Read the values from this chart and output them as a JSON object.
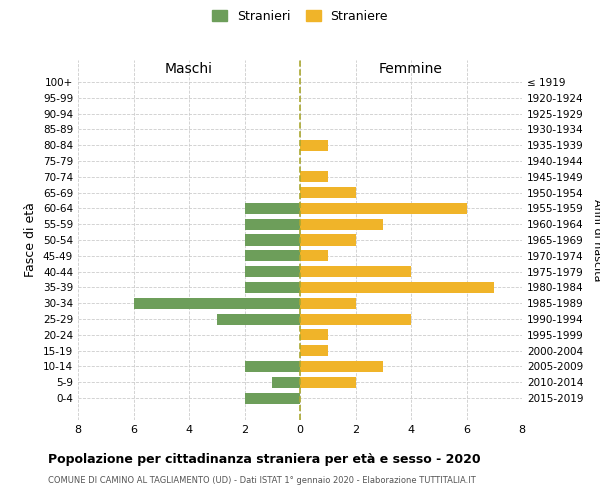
{
  "age_groups": [
    "100+",
    "95-99",
    "90-94",
    "85-89",
    "80-84",
    "75-79",
    "70-74",
    "65-69",
    "60-64",
    "55-59",
    "50-54",
    "45-49",
    "40-44",
    "35-39",
    "30-34",
    "25-29",
    "20-24",
    "15-19",
    "10-14",
    "5-9",
    "0-4"
  ],
  "birth_years": [
    "≤ 1919",
    "1920-1924",
    "1925-1929",
    "1930-1934",
    "1935-1939",
    "1940-1944",
    "1945-1949",
    "1950-1954",
    "1955-1959",
    "1960-1964",
    "1965-1969",
    "1970-1974",
    "1975-1979",
    "1980-1984",
    "1985-1989",
    "1990-1994",
    "1995-1999",
    "2000-2004",
    "2005-2009",
    "2010-2014",
    "2015-2019"
  ],
  "maschi": [
    0,
    0,
    0,
    0,
    0,
    0,
    0,
    0,
    2,
    2,
    2,
    2,
    2,
    2,
    6,
    3,
    0,
    0,
    2,
    1,
    2
  ],
  "femmine": [
    0,
    0,
    0,
    0,
    1,
    0,
    1,
    2,
    6,
    3,
    2,
    1,
    4,
    7,
    2,
    4,
    1,
    1,
    3,
    2,
    0
  ],
  "color_maschi": "#6d9e5a",
  "color_femmine": "#f0b429",
  "xlim": 8,
  "title_main": "Popolazione per cittadinanza straniera per età e sesso - 2020",
  "title_sub": "COMUNE DI CAMINO AL TAGLIAMENTO (UD) - Dati ISTAT 1° gennaio 2020 - Elaborazione TUTTITALIA.IT",
  "label_maschi": "Stranieri",
  "label_femmine": "Straniere",
  "label_left": "Maschi",
  "label_right": "Femmine",
  "ylabel_left": "Fasce di età",
  "ylabel_right": "Anni di nascita",
  "background_color": "#ffffff",
  "grid_color": "#cccccc"
}
